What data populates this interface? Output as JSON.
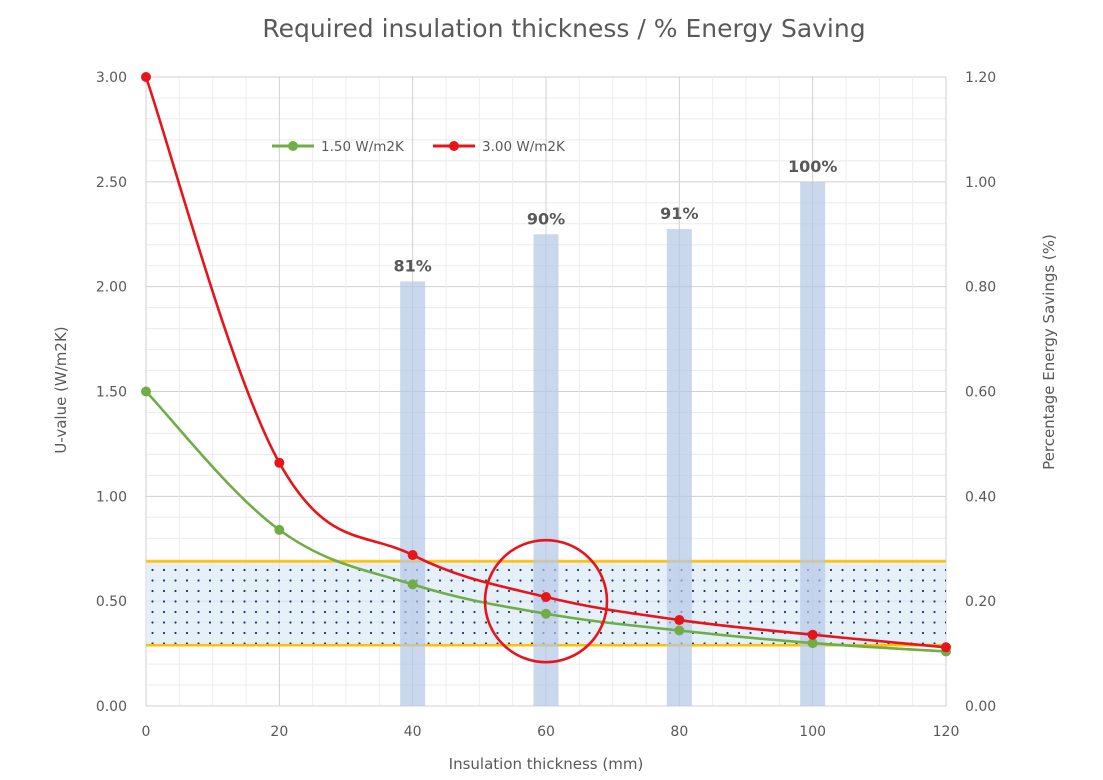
{
  "chart_data": {
    "type": "line",
    "title": "Required insulation thickness / % Energy Saving",
    "xlabel": "Insulation thickness (mm)",
    "ylabel": "U-value (W/m2K)",
    "y2label": "Percentage Energy Savings (%)",
    "xlim": [
      0,
      120
    ],
    "ylim": [
      0,
      3.0
    ],
    "y2lim": [
      0,
      1.2
    ],
    "x_ticks": [
      "0",
      "20",
      "40",
      "60",
      "80",
      "100",
      "120"
    ],
    "y_ticks": [
      "0.00",
      "0.50",
      "1.00",
      "1.50",
      "2.00",
      "2.50",
      "3.00"
    ],
    "y2_ticks": [
      "0.00",
      "0.20",
      "0.40",
      "0.60",
      "0.80",
      "1.00",
      "1.20"
    ],
    "grid": true,
    "legend_position": "top-left",
    "series": [
      {
        "name": "1.50 W/m2K",
        "color": "#70AD47",
        "axis": "left",
        "x": [
          0,
          20,
          40,
          60,
          80,
          100,
          120
        ],
        "y": [
          1.5,
          0.84,
          0.58,
          0.44,
          0.36,
          0.3,
          0.26
        ]
      },
      {
        "name": "3.00 W/m2K",
        "color": "#E8141B",
        "axis": "left",
        "x": [
          0,
          20,
          40,
          60,
          80,
          100,
          120
        ],
        "y": [
          3.0,
          1.16,
          0.72,
          0.52,
          0.41,
          0.34,
          0.28
        ]
      },
      {
        "name": "",
        "type": "bar",
        "color": "#B4C7E7",
        "axis": "right",
        "x": [
          40,
          60,
          80,
          100
        ],
        "y": [
          0.81,
          0.9,
          0.91,
          1.0
        ],
        "labels": [
          "81%",
          "90%",
          "91%",
          "100%"
        ]
      }
    ],
    "annotations": {
      "target_band": {
        "y_low": 0.29,
        "y_high": 0.69,
        "line_color": "#FFC000",
        "fill_color": "#DEEBF7"
      },
      "highlight_circle": {
        "x": 60,
        "y": 0.5,
        "color": "#E8141B"
      }
    }
  }
}
